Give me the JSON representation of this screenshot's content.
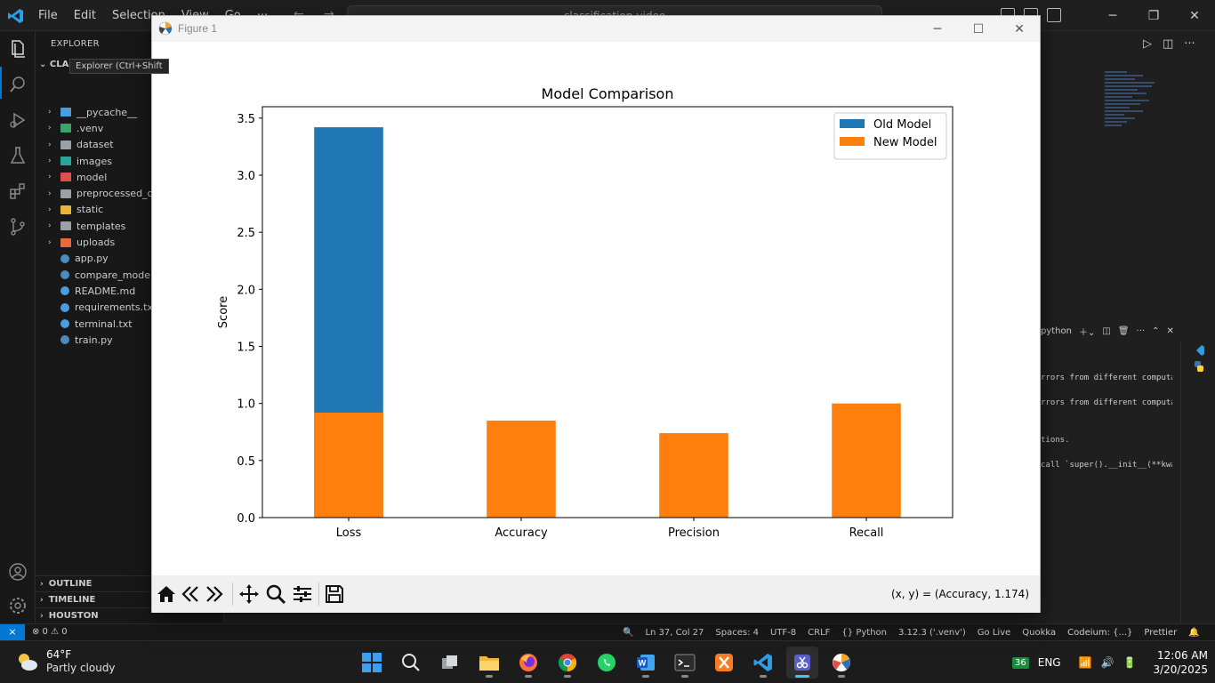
{
  "vscode": {
    "menu": [
      "File",
      "Edit",
      "Selection",
      "View",
      "Go",
      "···"
    ],
    "command_center": "classification-video",
    "explorer_title": "EXPLORER",
    "root_folder": "CLAS",
    "tooltip": "Explorer (Ctrl+Shift",
    "tree": [
      {
        "label": "__pycache__",
        "kind": "folder",
        "color": "#4a9ee0"
      },
      {
        "label": ".venv",
        "kind": "folder",
        "color": "#3aa66a"
      },
      {
        "label": "dataset",
        "kind": "folder",
        "color": "#9aa0a6"
      },
      {
        "label": "images",
        "kind": "folder",
        "color": "#2aa39a"
      },
      {
        "label": "model",
        "kind": "folder",
        "color": "#e0504a"
      },
      {
        "label": "preprocessed_dat",
        "kind": "folder",
        "color": "#9aa0a6"
      },
      {
        "label": "static",
        "kind": "folder",
        "color": "#e8b43a"
      },
      {
        "label": "templates",
        "kind": "folder",
        "color": "#9aa0a6"
      },
      {
        "label": "uploads",
        "kind": "folder",
        "color": "#e86a3a"
      },
      {
        "label": "app.py",
        "kind": "file",
        "color": "#4b8bbe"
      },
      {
        "label": "compare_models.",
        "kind": "file",
        "color": "#4b8bbe"
      },
      {
        "label": "README.md",
        "kind": "file",
        "color": "#4a9ee0"
      },
      {
        "label": "requirements.txt",
        "kind": "file",
        "color": "#4a9ee0"
      },
      {
        "label": "terminal.txt",
        "kind": "file",
        "color": "#4a9ee0"
      },
      {
        "label": "train.py",
        "kind": "file",
        "color": "#4b8bbe"
      }
    ],
    "sections": [
      "OUTLINE",
      "TIMELINE",
      "HOUSTON"
    ],
    "terminal": {
      "tab_label": "python",
      "lines": [
        "rrors from different computati",
        "rrors from different computati",
        "tions.",
        "call `super().__init__(**kwar"
      ]
    },
    "statusbar": {
      "remote": "⨯",
      "problems": "⊗ 0 ⚠ 0",
      "items": [
        "Ln 37, Col 27",
        "Spaces: 4",
        "UTF-8",
        "CRLF",
        "{} Python",
        "3.12.3 ('.venv')",
        "Go Live",
        "Quokka",
        "Codeium: {...}",
        "Prettier"
      ]
    }
  },
  "figure": {
    "window_title": "Figure 1",
    "coord_readout": "(x, y) = (Accuracy, 1.174)"
  },
  "chart_data": {
    "type": "bar",
    "title": "Model Comparison",
    "xlabel": "",
    "ylabel": "Score",
    "categories": [
      "Loss",
      "Accuracy",
      "Precision",
      "Recall"
    ],
    "series": [
      {
        "name": "Old Model",
        "color": "#1f77b4",
        "values": [
          3.42,
          0.0,
          0.0,
          0.0
        ]
      },
      {
        "name": "New Model",
        "color": "#ff7f0e",
        "values": [
          0.92,
          0.85,
          0.74,
          1.0
        ]
      }
    ],
    "ylim": [
      0,
      3.6
    ],
    "yticks": [
      "0.0",
      "0.5",
      "1.0",
      "1.5",
      "2.0",
      "2.5",
      "3.0",
      "3.5"
    ],
    "legend": "top-right",
    "grid": false
  },
  "taskbar": {
    "weather_temp": "64°F",
    "weather_cond": "Partly cloudy",
    "apps": [
      "start",
      "search",
      "task-view",
      "file-explorer",
      "firefox",
      "chrome",
      "whatsapp",
      "word",
      "terminal",
      "xampp",
      "vscode",
      "snipping-tool",
      "python-figure"
    ],
    "tray_badge": "36",
    "lang": "ENG",
    "time": "12:06 AM",
    "date": "3/20/2025"
  }
}
